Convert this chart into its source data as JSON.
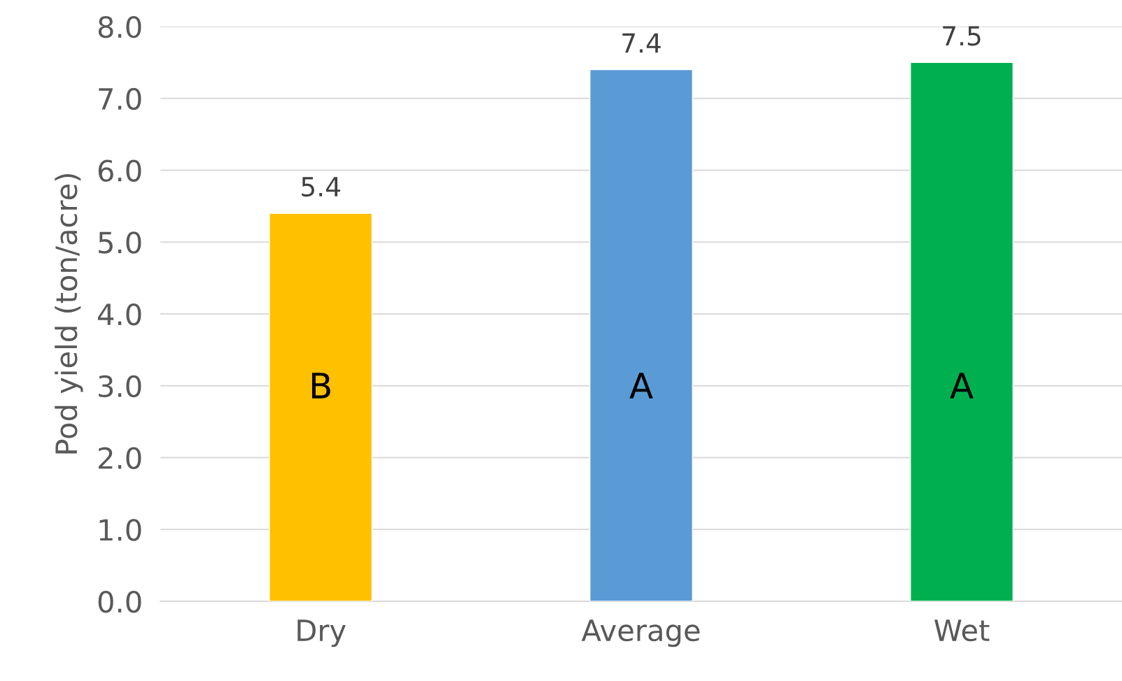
{
  "chart_data": {
    "type": "bar",
    "ylabel": "Pod yield (ton/acre)",
    "categories": [
      "Dry",
      "Average",
      "Wet"
    ],
    "values": [
      5.4,
      7.4,
      7.5
    ],
    "colors": [
      "#ffc000",
      "#5b9bd5",
      "#00b050"
    ],
    "ylim": [
      0,
      8
    ],
    "yticks": [
      {
        "value": 0,
        "label": "0.0"
      },
      {
        "value": 1,
        "label": "1.0"
      },
      {
        "value": 2,
        "label": "2.0"
      },
      {
        "value": 3,
        "label": "3.0"
      },
      {
        "value": 4,
        "label": "4.0"
      },
      {
        "value": 5,
        "label": "5.0"
      },
      {
        "value": 6,
        "label": "6.0"
      },
      {
        "value": 7,
        "label": "7.0"
      },
      {
        "value": 8,
        "label": "8.0"
      }
    ],
    "grid": "y",
    "data_labels": true,
    "annotations": [
      "B",
      "A",
      "A"
    ]
  }
}
